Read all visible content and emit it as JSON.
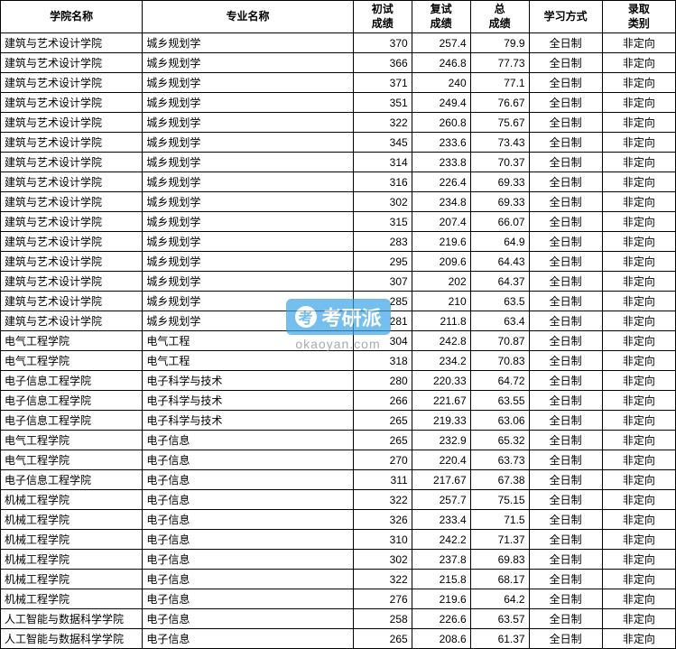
{
  "table": {
    "headers": {
      "college": "学院名称",
      "major": "专业名称",
      "score1": "初试\n成绩",
      "score2": "复试\n成绩",
      "score3": "总\n成绩",
      "mode": "学习方式",
      "type": "录取\n类别"
    },
    "rows": [
      {
        "college": "建筑与艺术设计学院",
        "major": "城乡规划学",
        "s1": "370",
        "s2": "257.4",
        "s3": "79.9",
        "mode": "全日制",
        "type": "非定向"
      },
      {
        "college": "建筑与艺术设计学院",
        "major": "城乡规划学",
        "s1": "366",
        "s2": "246.8",
        "s3": "77.73",
        "mode": "全日制",
        "type": "非定向"
      },
      {
        "college": "建筑与艺术设计学院",
        "major": "城乡规划学",
        "s1": "371",
        "s2": "240",
        "s3": "77.1",
        "mode": "全日制",
        "type": "非定向"
      },
      {
        "college": "建筑与艺术设计学院",
        "major": "城乡规划学",
        "s1": "351",
        "s2": "249.4",
        "s3": "76.67",
        "mode": "全日制",
        "type": "非定向"
      },
      {
        "college": "建筑与艺术设计学院",
        "major": "城乡规划学",
        "s1": "322",
        "s2": "260.8",
        "s3": "75.67",
        "mode": "全日制",
        "type": "非定向"
      },
      {
        "college": "建筑与艺术设计学院",
        "major": "城乡规划学",
        "s1": "345",
        "s2": "233.6",
        "s3": "73.43",
        "mode": "全日制",
        "type": "非定向"
      },
      {
        "college": "建筑与艺术设计学院",
        "major": "城乡规划学",
        "s1": "314",
        "s2": "233.8",
        "s3": "70.37",
        "mode": "全日制",
        "type": "非定向"
      },
      {
        "college": "建筑与艺术设计学院",
        "major": "城乡规划学",
        "s1": "316",
        "s2": "226.4",
        "s3": "69.33",
        "mode": "全日制",
        "type": "非定向"
      },
      {
        "college": "建筑与艺术设计学院",
        "major": "城乡规划学",
        "s1": "302",
        "s2": "234.8",
        "s3": "69.33",
        "mode": "全日制",
        "type": "非定向"
      },
      {
        "college": "建筑与艺术设计学院",
        "major": "城乡规划学",
        "s1": "315",
        "s2": "207.4",
        "s3": "66.07",
        "mode": "全日制",
        "type": "非定向"
      },
      {
        "college": "建筑与艺术设计学院",
        "major": "城乡规划学",
        "s1": "283",
        "s2": "219.6",
        "s3": "64.9",
        "mode": "全日制",
        "type": "非定向"
      },
      {
        "college": "建筑与艺术设计学院",
        "major": "城乡规划学",
        "s1": "295",
        "s2": "209.6",
        "s3": "64.43",
        "mode": "全日制",
        "type": "非定向"
      },
      {
        "college": "建筑与艺术设计学院",
        "major": "城乡规划学",
        "s1": "307",
        "s2": "202",
        "s3": "64.37",
        "mode": "全日制",
        "type": "非定向"
      },
      {
        "college": "建筑与艺术设计学院",
        "major": "城乡规划学",
        "s1": "285",
        "s2": "210",
        "s3": "63.5",
        "mode": "全日制",
        "type": "非定向"
      },
      {
        "college": "建筑与艺术设计学院",
        "major": "城乡规划学",
        "s1": "281",
        "s2": "211.8",
        "s3": "63.4",
        "mode": "全日制",
        "type": "非定向"
      },
      {
        "college": "电气工程学院",
        "major": "电气工程",
        "s1": "304",
        "s2": "242.8",
        "s3": "70.87",
        "mode": "全日制",
        "type": "非定向"
      },
      {
        "college": "电气工程学院",
        "major": "电气工程",
        "s1": "318",
        "s2": "234.2",
        "s3": "70.83",
        "mode": "全日制",
        "type": "非定向"
      },
      {
        "college": "电子信息工程学院",
        "major": "电子科学与技术",
        "s1": "280",
        "s2": "220.33",
        "s3": "64.72",
        "mode": "全日制",
        "type": "非定向"
      },
      {
        "college": "电子信息工程学院",
        "major": "电子科学与技术",
        "s1": "266",
        "s2": "221.67",
        "s3": "63.55",
        "mode": "全日制",
        "type": "非定向"
      },
      {
        "college": "电子信息工程学院",
        "major": "电子科学与技术",
        "s1": "265",
        "s2": "219.33",
        "s3": "63.06",
        "mode": "全日制",
        "type": "非定向"
      },
      {
        "college": "电气工程学院",
        "major": "电子信息",
        "s1": "265",
        "s2": "232.9",
        "s3": "65.32",
        "mode": "全日制",
        "type": "非定向"
      },
      {
        "college": "电气工程学院",
        "major": "电子信息",
        "s1": "270",
        "s2": "220.4",
        "s3": "63.73",
        "mode": "全日制",
        "type": "非定向"
      },
      {
        "college": "电子信息工程学院",
        "major": "电子信息",
        "s1": "311",
        "s2": "217.67",
        "s3": "67.38",
        "mode": "全日制",
        "type": "非定向"
      },
      {
        "college": "机械工程学院",
        "major": "电子信息",
        "s1": "322",
        "s2": "257.7",
        "s3": "75.15",
        "mode": "全日制",
        "type": "非定向"
      },
      {
        "college": "机械工程学院",
        "major": "电子信息",
        "s1": "326",
        "s2": "233.4",
        "s3": "71.5",
        "mode": "全日制",
        "type": "非定向"
      },
      {
        "college": "机械工程学院",
        "major": "电子信息",
        "s1": "310",
        "s2": "242.2",
        "s3": "71.37",
        "mode": "全日制",
        "type": "非定向"
      },
      {
        "college": "机械工程学院",
        "major": "电子信息",
        "s1": "302",
        "s2": "237.8",
        "s3": "69.83",
        "mode": "全日制",
        "type": "非定向"
      },
      {
        "college": "机械工程学院",
        "major": "电子信息",
        "s1": "322",
        "s2": "215.8",
        "s3": "68.17",
        "mode": "全日制",
        "type": "非定向"
      },
      {
        "college": "机械工程学院",
        "major": "电子信息",
        "s1": "276",
        "s2": "219.6",
        "s3": "64.2",
        "mode": "全日制",
        "type": "非定向"
      },
      {
        "college": "人工智能与数据科学学院",
        "major": "电子信息",
        "s1": "258",
        "s2": "226.6",
        "s3": "63.57",
        "mode": "全日制",
        "type": "非定向"
      },
      {
        "college": "人工智能与数据科学学院",
        "major": "电子信息",
        "s1": "265",
        "s2": "208.6",
        "s3": "61.37",
        "mode": "全日制",
        "type": "非定向"
      }
    ]
  },
  "watermark": {
    "brand": "考研派",
    "url": "okaoyan.com",
    "icon": "考"
  },
  "style": {
    "border_color": "#000000",
    "background": "#ffffff",
    "font_size_cell": 12,
    "font_size_header": 12,
    "watermark_bg": "#3ba5e8",
    "watermark_text": "#ffffff",
    "watermark_url_color": "#888888"
  }
}
